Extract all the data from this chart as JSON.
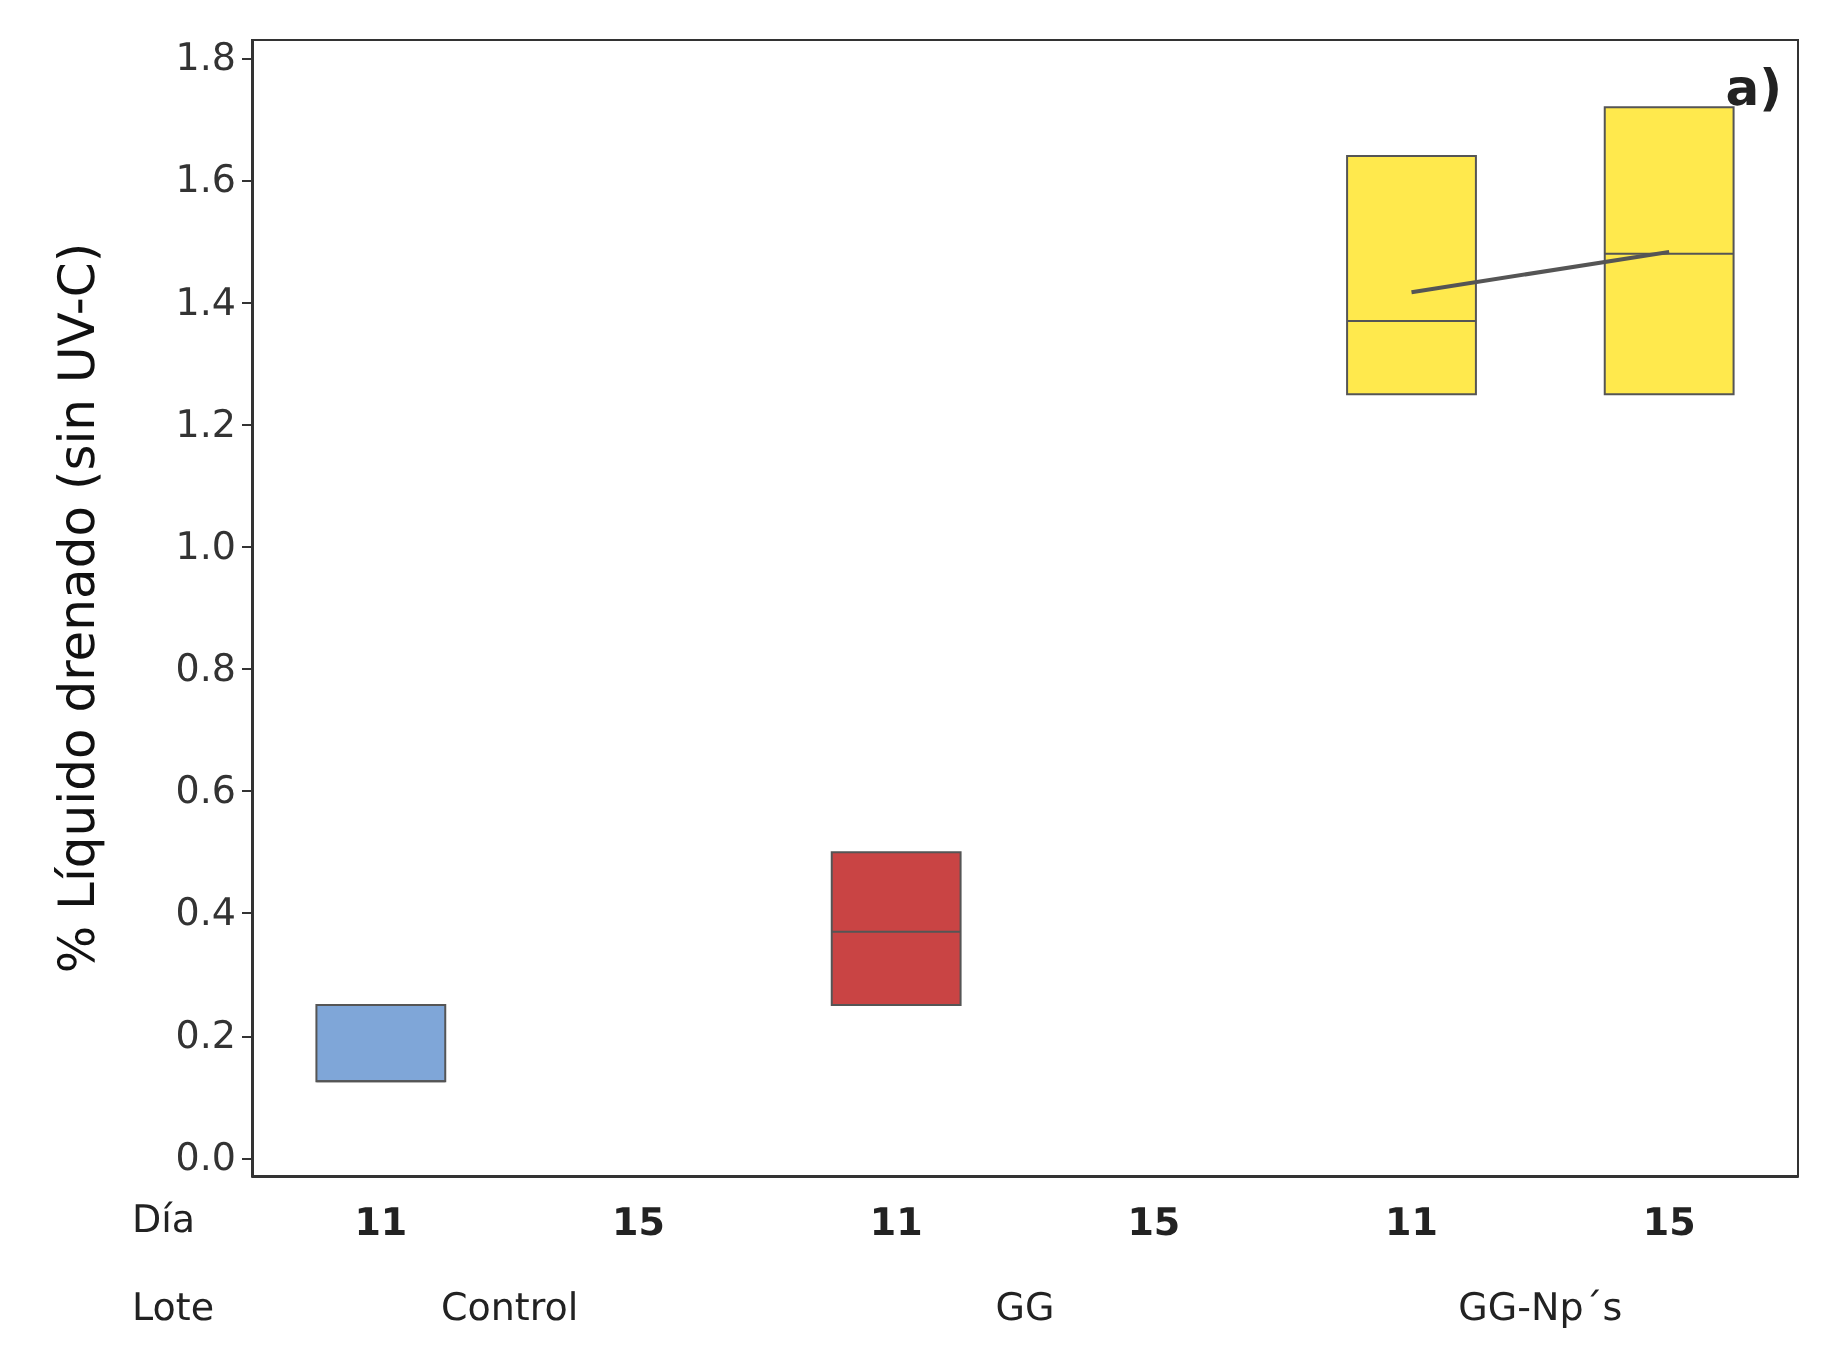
{
  "chart_data": {
    "type": "box",
    "ylabel": "% Líquido drenado (sin UV-C)",
    "categories": [
      "11",
      "15",
      "11",
      "15",
      "11",
      "15"
    ],
    "boxes": [
      {
        "low": 0.125,
        "q1": 0.125,
        "median": 0.125,
        "q3": 0.25,
        "high": 0.25
      },
      null,
      {
        "low": 0.25,
        "q1": 0.25,
        "median": 0.37,
        "q3": 0.5,
        "high": 0.5
      },
      null,
      {
        "low": 1.25,
        "q1": 1.25,
        "median": 1.37,
        "q3": 1.64,
        "high": 1.64
      },
      {
        "low": 1.25,
        "q1": 1.25,
        "median": 1.48,
        "q3": 1.72,
        "high": 1.72
      }
    ],
    "colors": [
      "#7fa6d8",
      null,
      "#c94444",
      null,
      "#ffe94d",
      "#ffe94d"
    ],
    "series": [
      {
        "type": "line",
        "color": "#555555",
        "values": [
          null,
          null,
          null,
          null,
          1.417,
          1.483
        ]
      }
    ],
    "marker": "none",
    "ylim": [
      -0.03,
      1.83
    ],
    "yticks": [
      {
        "value": 0,
        "label": "0.0"
      },
      0.2,
      0.4,
      0.6,
      0.8,
      {
        "value": 1,
        "label": "1.0"
      },
      1.2,
      1.4,
      1.6,
      1.8
    ],
    "grid": false,
    "annotations": [
      "a)",
      "Día",
      "Lote",
      "Control",
      "GG",
      "GG-Np´s"
    ]
  }
}
